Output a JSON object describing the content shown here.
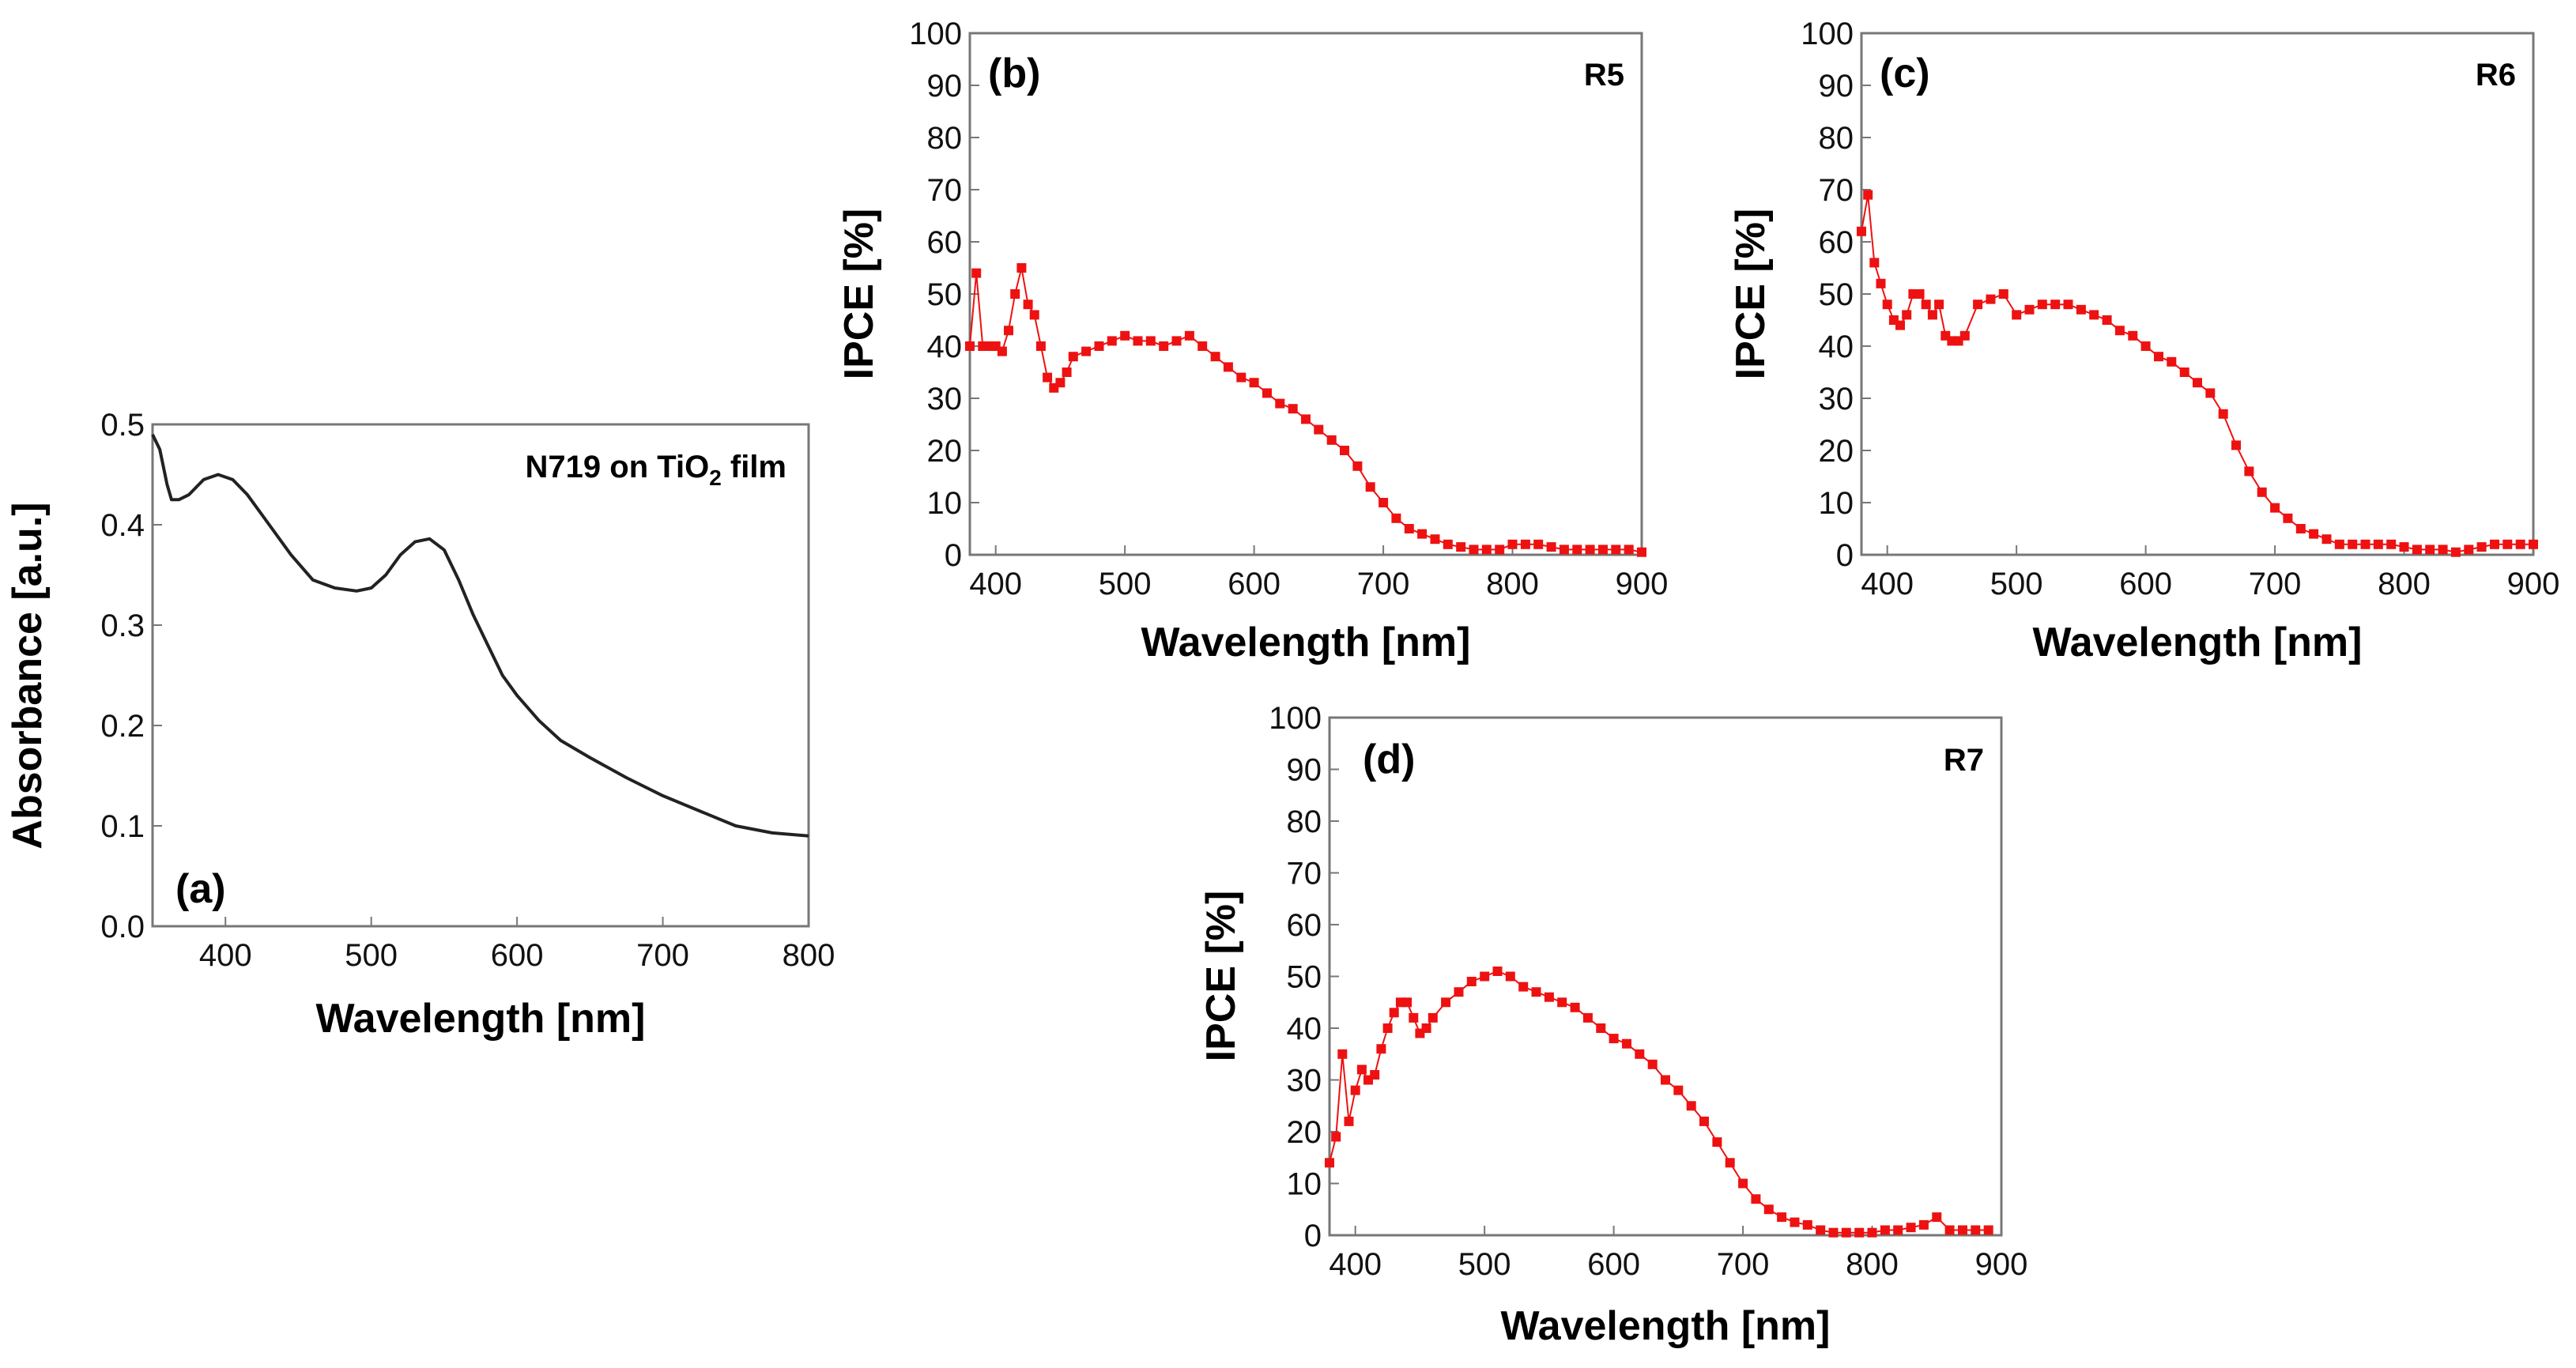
{
  "chart_data": [
    {
      "id": "a",
      "type": "line",
      "panel_label": "(a)",
      "annotation": "N719 on TiO",
      "annotation_sub": "2",
      "annotation_suffix": " film",
      "xlabel": "Wavelength [nm]",
      "ylabel": "Absorbance [a.u.]",
      "xlim": [
        350,
        800
      ],
      "ylim": [
        0.0,
        0.5
      ],
      "xticks": [
        400,
        500,
        600,
        700,
        800
      ],
      "yticks": [
        "0.0",
        "0.1",
        "0.2",
        "0.3",
        "0.4",
        "0.5"
      ],
      "series_color": "#222222",
      "x": [
        350,
        355,
        360,
        363,
        368,
        375,
        385,
        395,
        405,
        415,
        430,
        445,
        460,
        475,
        490,
        500,
        510,
        520,
        530,
        540,
        550,
        560,
        570,
        580,
        590,
        600,
        615,
        630,
        650,
        675,
        700,
        725,
        750,
        775,
        800
      ],
      "y": [
        0.49,
        0.475,
        0.44,
        0.425,
        0.425,
        0.43,
        0.445,
        0.45,
        0.445,
        0.43,
        0.4,
        0.37,
        0.345,
        0.337,
        0.334,
        0.337,
        0.35,
        0.37,
        0.383,
        0.386,
        0.375,
        0.345,
        0.31,
        0.28,
        0.25,
        0.23,
        0.205,
        0.185,
        0.168,
        0.148,
        0.13,
        0.115,
        0.1,
        0.093,
        0.09
      ]
    },
    {
      "id": "b",
      "type": "scatter",
      "panel_label": "(b)",
      "series_label": "R5",
      "xlabel": "Wavelength [nm]",
      "ylabel": "IPCE [%]",
      "xlim": [
        380,
        900
      ],
      "ylim": [
        0,
        100
      ],
      "xticks": [
        400,
        500,
        600,
        700,
        800,
        900
      ],
      "yticks": [
        "0",
        "10",
        "20",
        "30",
        "40",
        "50",
        "60",
        "70",
        "80",
        "90",
        "100"
      ],
      "series_color": "#ee1111",
      "x": [
        380,
        385,
        390,
        395,
        400,
        405,
        410,
        415,
        420,
        425,
        430,
        435,
        440,
        445,
        450,
        455,
        460,
        470,
        480,
        490,
        500,
        510,
        520,
        530,
        540,
        550,
        560,
        570,
        580,
        590,
        600,
        610,
        620,
        630,
        640,
        650,
        660,
        670,
        680,
        690,
        700,
        710,
        720,
        730,
        740,
        750,
        760,
        770,
        780,
        790,
        800,
        810,
        820,
        830,
        840,
        850,
        860,
        870,
        880,
        890,
        900
      ],
      "y": [
        40,
        54,
        40,
        40,
        40,
        39,
        43,
        50,
        55,
        48,
        46,
        40,
        34,
        32,
        33,
        35,
        38,
        39,
        40,
        41,
        42,
        41,
        41,
        40,
        41,
        42,
        40,
        38,
        36,
        34,
        33,
        31,
        29,
        28,
        26,
        24,
        22,
        20,
        17,
        13,
        10,
        7,
        5,
        4,
        3,
        2,
        1.5,
        1,
        1,
        1,
        2,
        2,
        2,
        1.5,
        1,
        1,
        1,
        1,
        1,
        1,
        0.5
      ]
    },
    {
      "id": "c",
      "type": "scatter",
      "panel_label": "(c)",
      "series_label": "R6",
      "xlabel": "Wavelength [nm]",
      "ylabel": "IPCE [%]",
      "xlim": [
        380,
        900
      ],
      "ylim": [
        0,
        100
      ],
      "xticks": [
        400,
        500,
        600,
        700,
        800,
        900
      ],
      "yticks": [
        "0",
        "10",
        "20",
        "30",
        "40",
        "50",
        "60",
        "70",
        "80",
        "90",
        "100"
      ],
      "series_color": "#ee1111",
      "x": [
        380,
        385,
        390,
        395,
        400,
        405,
        410,
        415,
        420,
        425,
        430,
        435,
        440,
        445,
        450,
        455,
        460,
        470,
        480,
        490,
        500,
        510,
        520,
        530,
        540,
        550,
        560,
        570,
        580,
        590,
        600,
        610,
        620,
        630,
        640,
        650,
        660,
        670,
        680,
        690,
        700,
        710,
        720,
        730,
        740,
        750,
        760,
        770,
        780,
        790,
        800,
        810,
        820,
        830,
        840,
        850,
        860,
        870,
        880,
        890,
        900
      ],
      "y": [
        62,
        69,
        56,
        52,
        48,
        45,
        44,
        46,
        50,
        50,
        48,
        46,
        48,
        42,
        41,
        41,
        42,
        48,
        49,
        50,
        46,
        47,
        48,
        48,
        48,
        47,
        46,
        45,
        43,
        42,
        40,
        38,
        37,
        35,
        33,
        31,
        27,
        21,
        16,
        12,
        9,
        7,
        5,
        4,
        3,
        2,
        2,
        2,
        2,
        2,
        1.5,
        1,
        1,
        1,
        0.5,
        1,
        1.5,
        2,
        2,
        2,
        2
      ]
    },
    {
      "id": "d",
      "type": "scatter",
      "panel_label": "(d)",
      "series_label": "R7",
      "xlabel": "Wavelength [nm]",
      "ylabel": "IPCE [%]",
      "xlim": [
        380,
        900
      ],
      "ylim": [
        0,
        100
      ],
      "xticks": [
        400,
        500,
        600,
        700,
        800,
        900
      ],
      "yticks": [
        "0",
        "10",
        "20",
        "30",
        "40",
        "50",
        "60",
        "70",
        "80",
        "90",
        "100"
      ],
      "series_color": "#ee1111",
      "x": [
        380,
        385,
        390,
        395,
        400,
        405,
        410,
        415,
        420,
        425,
        430,
        435,
        440,
        445,
        450,
        455,
        460,
        470,
        480,
        490,
        500,
        510,
        520,
        530,
        540,
        550,
        560,
        570,
        580,
        590,
        600,
        610,
        620,
        630,
        640,
        650,
        660,
        670,
        680,
        690,
        700,
        710,
        720,
        730,
        740,
        750,
        760,
        770,
        780,
        790,
        800,
        810,
        820,
        830,
        840,
        850,
        860,
        870,
        880,
        890
      ],
      "y": [
        14,
        19,
        35,
        22,
        28,
        32,
        30,
        31,
        36,
        40,
        43,
        45,
        45,
        42,
        39,
        40,
        42,
        45,
        47,
        49,
        50,
        51,
        50,
        48,
        47,
        46,
        45,
        44,
        42,
        40,
        38,
        37,
        35,
        33,
        30,
        28,
        25,
        22,
        18,
        14,
        10,
        7,
        5,
        3.5,
        2.5,
        2,
        1,
        0.5,
        0.5,
        0.5,
        0.5,
        1,
        1,
        1.5,
        2,
        3.5,
        1,
        1,
        1,
        1
      ]
    }
  ]
}
